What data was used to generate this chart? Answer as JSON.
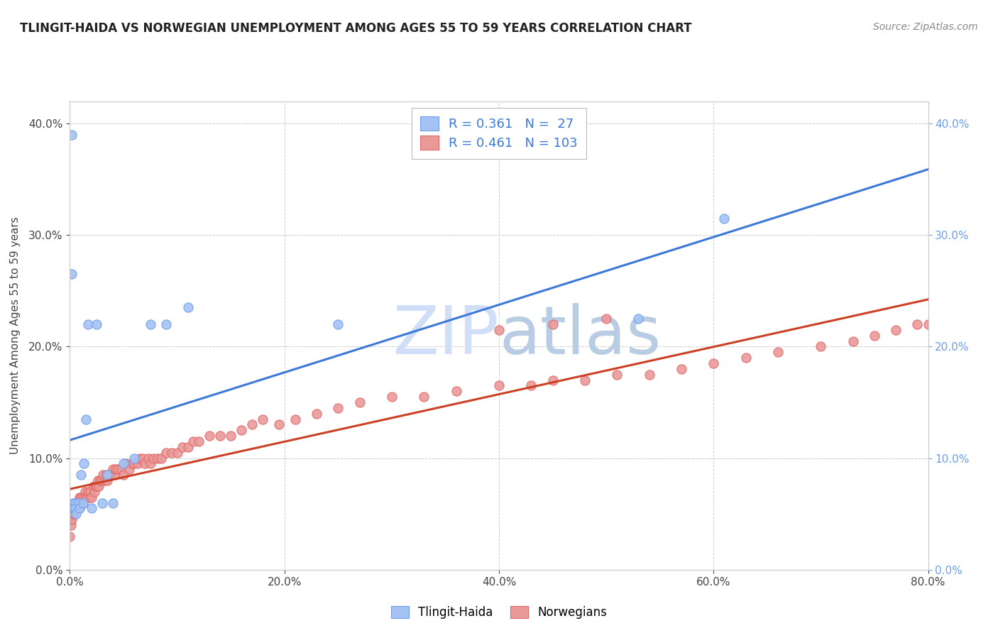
{
  "title": "TLINGIT-HAIDA VS NORWEGIAN UNEMPLOYMENT AMONG AGES 55 TO 59 YEARS CORRELATION CHART",
  "source": "Source: ZipAtlas.com",
  "ylabel": "Unemployment Among Ages 55 to 59 years",
  "xlim": [
    0.0,
    0.8
  ],
  "ylim": [
    0.0,
    0.42
  ],
  "legend_blue_R": "0.361",
  "legend_blue_N": " 27",
  "legend_pink_R": "0.461",
  "legend_pink_N": "103",
  "blue_scatter_color": "#a4c2f4",
  "pink_scatter_color": "#ea9999",
  "blue_scatter_edge": "#6d9eeb",
  "pink_scatter_edge": "#e06666",
  "blue_line_color": "#3c78d8",
  "pink_line_color": "#cc4125",
  "watermark_color": "#d0dff7",
  "background_color": "#ffffff",
  "grid_color": "#cccccc",
  "right_tick_color": "#6d9eeb",
  "tlingit_x": [
    0.002,
    0.002,
    0.003,
    0.004,
    0.005,
    0.005,
    0.006,
    0.008,
    0.009,
    0.01,
    0.012,
    0.013,
    0.015,
    0.017,
    0.02,
    0.025,
    0.03,
    0.035,
    0.04,
    0.05,
    0.06,
    0.075,
    0.09,
    0.11,
    0.25,
    0.53,
    0.61
  ],
  "tlingit_y": [
    0.39,
    0.265,
    0.06,
    0.055,
    0.06,
    0.055,
    0.05,
    0.06,
    0.055,
    0.085,
    0.06,
    0.095,
    0.135,
    0.22,
    0.055,
    0.22,
    0.06,
    0.085,
    0.06,
    0.095,
    0.1,
    0.22,
    0.22,
    0.235,
    0.22,
    0.225,
    0.315
  ],
  "norwegian_x": [
    0.0,
    0.001,
    0.001,
    0.002,
    0.002,
    0.003,
    0.003,
    0.004,
    0.004,
    0.005,
    0.005,
    0.006,
    0.006,
    0.007,
    0.007,
    0.008,
    0.009,
    0.009,
    0.01,
    0.01,
    0.011,
    0.012,
    0.013,
    0.014,
    0.015,
    0.016,
    0.017,
    0.018,
    0.019,
    0.02,
    0.022,
    0.023,
    0.024,
    0.025,
    0.026,
    0.027,
    0.028,
    0.03,
    0.031,
    0.033,
    0.034,
    0.035,
    0.037,
    0.038,
    0.04,
    0.042,
    0.043,
    0.045,
    0.048,
    0.05,
    0.052,
    0.055,
    0.058,
    0.06,
    0.063,
    0.065,
    0.068,
    0.07,
    0.073,
    0.075,
    0.078,
    0.082,
    0.085,
    0.09,
    0.095,
    0.1,
    0.105,
    0.11,
    0.115,
    0.12,
    0.13,
    0.14,
    0.15,
    0.16,
    0.17,
    0.18,
    0.195,
    0.21,
    0.23,
    0.25,
    0.27,
    0.3,
    0.33,
    0.36,
    0.4,
    0.43,
    0.45,
    0.48,
    0.51,
    0.54,
    0.57,
    0.6,
    0.63,
    0.66,
    0.7,
    0.73,
    0.75,
    0.77,
    0.79,
    0.8,
    0.4,
    0.45,
    0.5
  ],
  "norwegian_y": [
    0.03,
    0.045,
    0.04,
    0.05,
    0.045,
    0.055,
    0.05,
    0.055,
    0.05,
    0.055,
    0.06,
    0.055,
    0.06,
    0.055,
    0.06,
    0.06,
    0.065,
    0.055,
    0.065,
    0.06,
    0.065,
    0.06,
    0.065,
    0.07,
    0.065,
    0.065,
    0.07,
    0.065,
    0.07,
    0.065,
    0.075,
    0.07,
    0.075,
    0.075,
    0.08,
    0.075,
    0.08,
    0.08,
    0.085,
    0.08,
    0.085,
    0.08,
    0.085,
    0.085,
    0.09,
    0.085,
    0.09,
    0.09,
    0.09,
    0.085,
    0.095,
    0.09,
    0.095,
    0.095,
    0.095,
    0.1,
    0.1,
    0.095,
    0.1,
    0.095,
    0.1,
    0.1,
    0.1,
    0.105,
    0.105,
    0.105,
    0.11,
    0.11,
    0.115,
    0.115,
    0.12,
    0.12,
    0.12,
    0.125,
    0.13,
    0.135,
    0.13,
    0.135,
    0.14,
    0.145,
    0.15,
    0.155,
    0.155,
    0.16,
    0.165,
    0.165,
    0.17,
    0.17,
    0.175,
    0.175,
    0.18,
    0.185,
    0.19,
    0.195,
    0.2,
    0.205,
    0.21,
    0.215,
    0.22,
    0.22,
    0.215,
    0.22,
    0.225
  ]
}
